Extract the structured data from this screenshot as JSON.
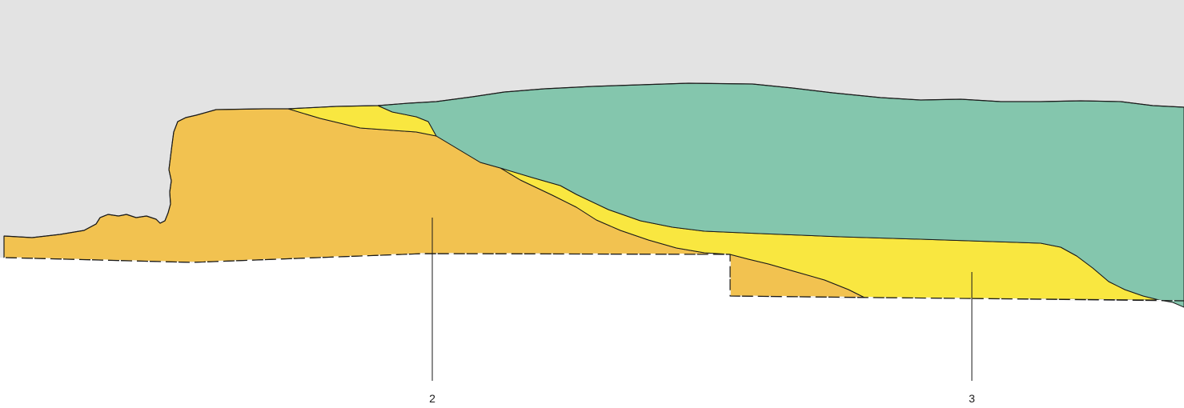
{
  "diagram": {
    "type": "geological-cross-section",
    "colors": {
      "sky": "#e3e3e3",
      "orange_layer": "#f2c250",
      "yellow_layer": "#f9e740",
      "green_layer": "#84c6ad",
      "outline": "#1a1a1a",
      "baseline_dash": "#ffffff"
    },
    "callouts": [
      {
        "label": "2",
        "layer": "orange_layer"
      },
      {
        "label": "3",
        "layer": "yellow_layer"
      }
    ]
  }
}
